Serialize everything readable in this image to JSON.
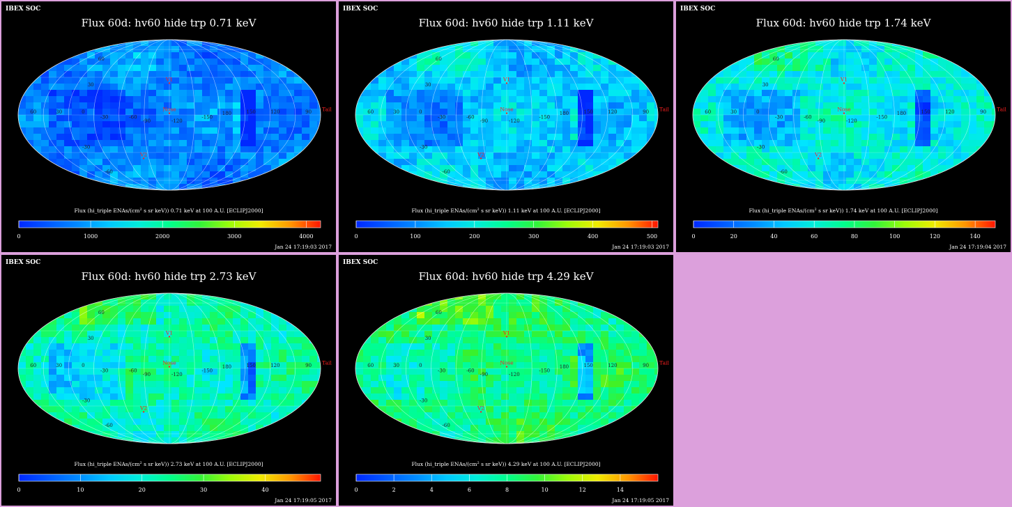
{
  "colors": {
    "background": "#dca0dc",
    "panel_bg": "#000000",
    "map_label_green": "#00cc33",
    "marker_red": "#ff2020",
    "title_white": "#ffffff"
  },
  "panels": [
    {
      "header": "IBEX SOC",
      "title": "Flux 60d: hv60 hide trp 0.71 keV",
      "cbar_label_pre": "Flux (hi_triple ENAs/(cm",
      "cbar_label_sup": "2",
      "cbar_label_post": " s sr keV)) 0.71 keV at 100 A.U. [ECLIPJ2000]",
      "timestamp": "Jan 24 17:19:03 2017",
      "markers": {
        "v1": "V1",
        "v2": "V2",
        "nose": "Nose",
        "tail": "Tail"
      },
      "grid_labels": {
        "lat_60": "60",
        "lat_30": "30",
        "lat_m30": "-30",
        "lat_m60": "-60",
        "lon_150": "150",
        "lon_120": "120",
        "lon_90": "90",
        "lon_60": "60",
        "lon_30": "30",
        "lon_0": "0",
        "lon_m30": "-30",
        "lon_m60": "-60",
        "lon_m90": "-90",
        "lon_m120": "-120",
        "lon_m150": "-150",
        "lon_180": "180"
      }
    },
    {
      "header": "IBEX SOC",
      "title": "Flux 60d: hv60 hide trp 1.11 keV",
      "cbar_label_pre": "Flux (hi_triple ENAs/(cm",
      "cbar_label_sup": "2",
      "cbar_label_post": " s sr keV)) 1.11 keV at 100 A.U. [ECLIPJ2000]",
      "timestamp": "Jan 24 17:19:03 2017",
      "markers": {
        "v1": "V1",
        "v2": "V2",
        "nose": "Nose",
        "tail": "Tail"
      },
      "grid_labels": {
        "lat_60": "60",
        "lat_30": "30",
        "lat_m30": "-30",
        "lat_m60": "-60",
        "lon_150": "150",
        "lon_120": "120",
        "lon_90": "90",
        "lon_60": "60",
        "lon_30": "30",
        "lon_0": "0",
        "lon_m30": "-30",
        "lon_m60": "-60",
        "lon_m90": "-90",
        "lon_m120": "-120",
        "lon_m150": "-150",
        "lon_180": "180"
      }
    },
    {
      "header": "IBEX SOC",
      "title": "Flux 60d: hv60 hide trp 1.74 keV",
      "cbar_label_pre": "Flux (hi_triple ENAs/(cm",
      "cbar_label_sup": "2",
      "cbar_label_post": " s sr keV)) 1.74 keV at 100 A.U. [ECLIPJ2000]",
      "timestamp": "Jan 24 17:19:04 2017",
      "markers": {
        "v1": "V1",
        "v2": "V2",
        "nose": "Nose",
        "tail": "Tail"
      },
      "grid_labels": {
        "lat_60": "60",
        "lat_30": "30",
        "lat_m30": "-30",
        "lat_m60": "-60",
        "lon_150": "150",
        "lon_120": "120",
        "lon_90": "90",
        "lon_60": "60",
        "lon_30": "30",
        "lon_0": "0",
        "lon_m30": "-30",
        "lon_m60": "-60",
        "lon_m90": "-90",
        "lon_m120": "-120",
        "lon_m150": "-150",
        "lon_180": "180"
      }
    },
    {
      "header": "IBEX SOC",
      "title": "Flux 60d: hv60 hide trp 2.73 keV",
      "cbar_label_pre": "Flux (hi_triple ENAs/(cm",
      "cbar_label_sup": "2",
      "cbar_label_post": " s sr keV)) 2.73 keV at 100 A.U. [ECLIPJ2000]",
      "timestamp": "Jan 24 17:19:05 2017",
      "markers": {
        "v1": "V1",
        "v2": "V2",
        "nose": "Nose",
        "tail": "Tail"
      },
      "grid_labels": {
        "lat_60": "60",
        "lat_30": "30",
        "lat_m30": "-30",
        "lat_m60": "-60",
        "lon_150": "150",
        "lon_120": "120",
        "lon_90": "90",
        "lon_60": "60",
        "lon_30": "30",
        "lon_0": "0",
        "lon_m30": "-30",
        "lon_m60": "-60",
        "lon_m90": "-90",
        "lon_m120": "-120",
        "lon_m150": "-150",
        "lon_180": "180"
      }
    },
    {
      "header": "IBEX SOC",
      "title": "Flux 60d: hv60 hide trp 4.29 keV",
      "cbar_label_pre": "Flux (hi_triple ENAs/(cm",
      "cbar_label_sup": "2",
      "cbar_label_post": " s sr keV)) 4.29 keV at 100 A.U. [ECLIPJ2000]",
      "timestamp": "Jan 24 17:19:05 2017",
      "markers": {
        "v1": "V1",
        "v2": "V2",
        "nose": "Nose",
        "tail": "Tail"
      },
      "grid_labels": {
        "lat_60": "60",
        "lat_30": "30",
        "lat_m30": "-30",
        "lat_m60": "-60",
        "lon_150": "150",
        "lon_120": "120",
        "lon_90": "90",
        "lon_60": "60",
        "lon_30": "30",
        "lon_0": "0",
        "lon_m30": "-30",
        "lon_m60": "-60",
        "lon_m90": "-90",
        "lon_m120": "-120",
        "lon_m150": "-150",
        "lon_180": "180"
      }
    }
  ],
  "chart_data": [
    {
      "type": "heatmap",
      "projection": "mollweide",
      "title": "Flux 60d: hv60 hide trp 0.71 keV",
      "colorbar_range": [
        0,
        4200
      ],
      "colorbar_ticks": [
        "0",
        "1000",
        "2000",
        "3000",
        "4000"
      ],
      "colormap": "rainbow (blue-cyan-green-yellow-red)",
      "energy_keV": 0.71,
      "dominant_level": "low (blue)"
    },
    {
      "type": "heatmap",
      "projection": "mollweide",
      "title": "Flux 60d: hv60 hide trp 1.11 keV",
      "colorbar_range": [
        0,
        510
      ],
      "colorbar_ticks": [
        "0",
        "100",
        "200",
        "300",
        "400",
        "500"
      ],
      "colormap": "rainbow (blue-cyan-green-yellow-red)",
      "energy_keV": 1.11,
      "dominant_level": "medium-low (cyan)"
    },
    {
      "type": "heatmap",
      "projection": "mollweide",
      "title": "Flux 60d: hv60 hide trp 1.74 keV",
      "colorbar_range": [
        0,
        150
      ],
      "colorbar_ticks": [
        "0",
        "20",
        "40",
        "60",
        "80",
        "100",
        "120",
        "140"
      ],
      "colormap": "rainbow (blue-cyan-green-yellow-red)",
      "energy_keV": 1.74,
      "dominant_level": "medium (cyan-green)"
    },
    {
      "type": "heatmap",
      "projection": "mollweide",
      "title": "Flux 60d: hv60 hide trp 2.73 keV",
      "colorbar_range": [
        0,
        49
      ],
      "colorbar_ticks": [
        "0",
        "10",
        "20",
        "30",
        "40"
      ],
      "colormap": "rainbow (blue-cyan-green-yellow-red)",
      "energy_keV": 2.73,
      "dominant_level": "medium (green)"
    },
    {
      "type": "heatmap",
      "projection": "mollweide",
      "title": "Flux 60d: hv60 hide trp 4.29 keV",
      "colorbar_range": [
        0,
        16
      ],
      "colorbar_ticks": [
        "0",
        "2",
        "4",
        "6",
        "8",
        "10",
        "12",
        "14"
      ],
      "colormap": "rainbow (blue-cyan-green-yellow-red)",
      "energy_keV": 4.29,
      "dominant_level": "medium-high (green-yellow)"
    }
  ]
}
